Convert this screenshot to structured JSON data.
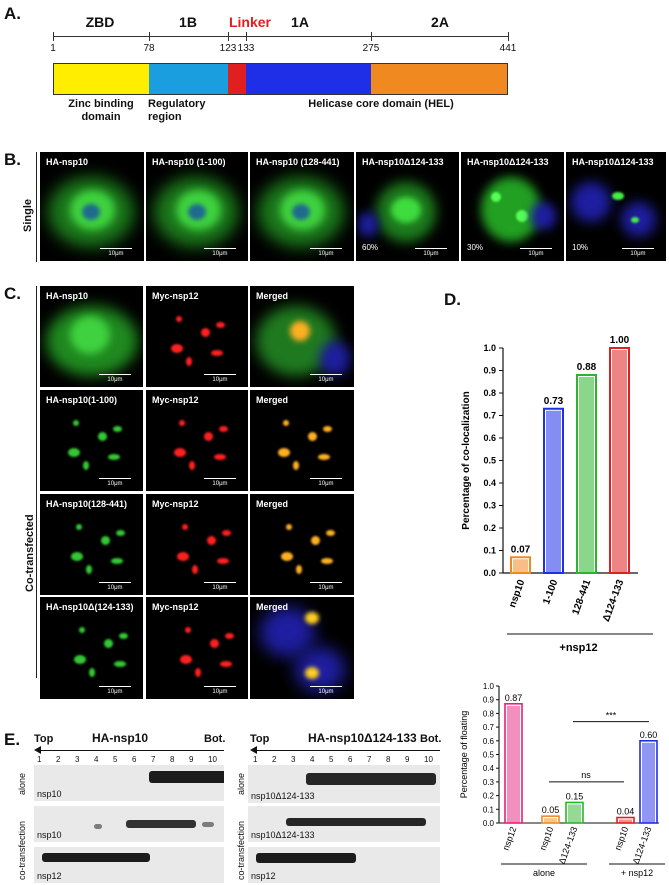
{
  "panel_a": {
    "label": "A.",
    "domains": [
      {
        "name": "ZBD",
        "color": "#ffee00",
        "name_color": "#111"
      },
      {
        "name": "1B",
        "color": "#1a9ee0",
        "name_color": "#111"
      },
      {
        "name": "Linker",
        "color": "#e02020",
        "name_color": "#e02020"
      },
      {
        "name": "1A",
        "color": "#1f2fe8",
        "name_color": "#111"
      },
      {
        "name": "2A",
        "color": "#f08a20",
        "name_color": "#111"
      }
    ],
    "ticks": [
      "1",
      "78",
      "123",
      "133",
      "275",
      "441"
    ],
    "captions": {
      "zinc": "Zinc binding domain",
      "regulatory": "Regulatory region",
      "helicase": "Helicase core domain (HEL)"
    }
  },
  "panel_b": {
    "label": "B.",
    "row_label": "Single",
    "cells": [
      {
        "label": "HA-nsp10",
        "pct": ""
      },
      {
        "label": "HA-nsp10 (1-100)",
        "pct": ""
      },
      {
        "label": "HA-nsp10 (128-441)",
        "pct": ""
      },
      {
        "label": "HA-nsp10Δ124-133",
        "pct": "60%"
      },
      {
        "label": "HA-nsp10Δ124-133",
        "pct": "30%"
      },
      {
        "label": "HA-nsp10Δ124-133",
        "pct": "10%"
      }
    ],
    "scale": "10μm"
  },
  "panel_c": {
    "label": "C.",
    "row_label": "Co-transfected",
    "rows": [
      {
        "green": "HA-nsp10",
        "red": "Myc-nsp12",
        "merged": "Merged"
      },
      {
        "green": "HA-nsp10(1-100)",
        "red": "Myc-nsp12",
        "merged": "Merged"
      },
      {
        "green": "HA-nsp10(128-441)",
        "red": "Myc-nsp12",
        "merged": "Merged"
      },
      {
        "green": "HA-nsp10Δ(124-133)",
        "red": "Myc-nsp12",
        "merged": "Merged"
      }
    ],
    "scale": "10μm"
  },
  "panel_d": {
    "label": "D.",
    "group_label": "+nsp12"
  },
  "panel_e": {
    "label": "E.",
    "left_title": "HA-nsp10",
    "right_title": "HA-nsp10Δ124-133",
    "top": "Top",
    "bot": "Bot.",
    "lanes": [
      "1",
      "2",
      "3",
      "4",
      "5",
      "6",
      "7",
      "8",
      "9",
      "10"
    ],
    "alone": "alone",
    "cotrans": "co-transfection",
    "left_blots": [
      "nsp10",
      "nsp10",
      "nsp12"
    ],
    "right_blots": [
      "nsp10Δ124-133",
      "nsp10Δ124-133",
      "nsp12"
    ]
  },
  "chart_data": [
    {
      "type": "bar",
      "ylabel": "Percentage of co-localization",
      "ylim": [
        0,
        1.0
      ],
      "yticks": [
        "0.0",
        "0.1",
        "0.2",
        "0.3",
        "0.4",
        "0.5",
        "0.6",
        "0.7",
        "0.8",
        "0.9",
        "1.0"
      ],
      "categories": [
        "nsp10",
        "1-100",
        "128-441",
        "Δ124-133"
      ],
      "values": [
        0.07,
        0.73,
        0.88,
        1.0
      ],
      "value_labels": [
        "0.07",
        "0.73",
        "0.88",
        "1.00"
      ],
      "colors": [
        "#f08a20",
        "#1f2fe8",
        "#2ab52a",
        "#e02020"
      ],
      "group_label": "+nsp12"
    },
    {
      "type": "bar",
      "ylabel": "Percentage of floating",
      "ylim": [
        0,
        1.0
      ],
      "yticks": [
        "0.0",
        "0.1",
        "0.2",
        "0.3",
        "0.4",
        "0.5",
        "0.6",
        "0.7",
        "0.8",
        "0.9",
        "1.0"
      ],
      "categories": [
        "nsp12",
        "nsp10",
        "Δ124-133",
        "nsp10",
        "Δ124-133"
      ],
      "values": [
        0.87,
        0.05,
        0.15,
        0.04,
        0.6
      ],
      "value_labels": [
        "0.87",
        "0.05",
        "0.15",
        "0.04",
        "0.60"
      ],
      "colors": [
        "#e8207a",
        "#f08a20",
        "#2ab52a",
        "#e02020",
        "#1f2fe8"
      ],
      "groups": [
        "alone",
        "+ nsp12"
      ],
      "annotations": [
        "ns",
        "***"
      ]
    }
  ]
}
